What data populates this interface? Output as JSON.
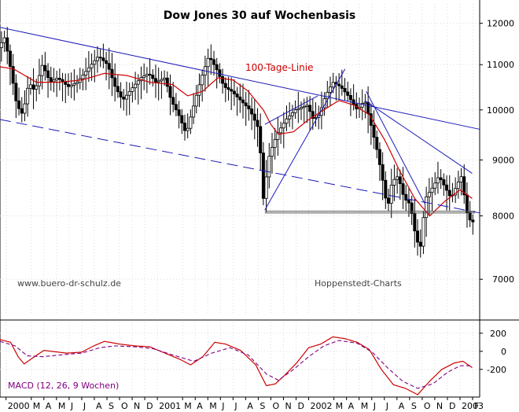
{
  "chart_data": {
    "type": "candlestick",
    "title": "Dow Jones 30 auf Wochenbasis",
    "watermark": "www.buero-dr-schulz.de",
    "source": "Hoppenstedt-Charts",
    "ma_label": "100-Tage-Linie",
    "macd_label": "MACD (12, 26, 9 Wochen)",
    "log_scale": true,
    "price_ylim": [
      6500,
      12500
    ],
    "price_ticks": [
      {
        "value": 7000,
        "label": "7000"
      },
      {
        "value": 8000,
        "label": "8000"
      },
      {
        "value": 9000,
        "label": "9000"
      },
      {
        "value": 10000,
        "label": "10000"
      },
      {
        "value": 11000,
        "label": "11000"
      },
      {
        "value": 12000,
        "label": "12000"
      }
    ],
    "macd_ylim": [
      -480,
      320
    ],
    "macd_ticks": [
      {
        "value": 200,
        "label": "200"
      },
      {
        "value": 0,
        "label": "0"
      },
      {
        "value": -200,
        "label": "-200"
      }
    ],
    "x_range": [
      1999.96,
      2003.13
    ],
    "x_ticks": [
      {
        "x": 2000.0,
        "label": "2000"
      },
      {
        "x": 2000.1667,
        "label": "M"
      },
      {
        "x": 2000.25,
        "label": "A"
      },
      {
        "x": 2000.3333,
        "label": "M"
      },
      {
        "x": 2000.4167,
        "label": "J"
      },
      {
        "x": 2000.5,
        "label": "J"
      },
      {
        "x": 2000.5833,
        "label": "A"
      },
      {
        "x": 2000.6667,
        "label": "S"
      },
      {
        "x": 2000.75,
        "label": "O"
      },
      {
        "x": 2000.8333,
        "label": "N"
      },
      {
        "x": 2000.9167,
        "label": "D"
      },
      {
        "x": 2001.0,
        "label": "2001"
      },
      {
        "x": 2001.1667,
        "label": "M"
      },
      {
        "x": 2001.25,
        "label": "A"
      },
      {
        "x": 2001.3333,
        "label": "M"
      },
      {
        "x": 2001.4167,
        "label": "J"
      },
      {
        "x": 2001.5,
        "label": "J"
      },
      {
        "x": 2001.5833,
        "label": "A"
      },
      {
        "x": 2001.6667,
        "label": "S"
      },
      {
        "x": 2001.75,
        "label": "O"
      },
      {
        "x": 2001.8333,
        "label": "N"
      },
      {
        "x": 2001.9167,
        "label": "D"
      },
      {
        "x": 2002.0,
        "label": "2002"
      },
      {
        "x": 2002.1667,
        "label": "M"
      },
      {
        "x": 2002.25,
        "label": "A"
      },
      {
        "x": 2002.3333,
        "label": "M"
      },
      {
        "x": 2002.4167,
        "label": "J"
      },
      {
        "x": 2002.5,
        "label": "J"
      },
      {
        "x": 2002.5833,
        "label": "A"
      },
      {
        "x": 2002.6667,
        "label": "S"
      },
      {
        "x": 2002.75,
        "label": "O"
      },
      {
        "x": 2002.8333,
        "label": "N"
      },
      {
        "x": 2002.9167,
        "label": "D"
      },
      {
        "x": 2003.0,
        "label": "2003"
      },
      {
        "x": 2003.0833,
        "label": "F"
      }
    ],
    "price_keypoints": [
      [
        1999.96,
        11400
      ],
      [
        2000.0,
        11650
      ],
      [
        2000.04,
        10900
      ],
      [
        2000.08,
        10100
      ],
      [
        2000.12,
        9900
      ],
      [
        2000.16,
        10600
      ],
      [
        2000.2,
        10400
      ],
      [
        2000.25,
        11000
      ],
      [
        2000.3,
        10600
      ],
      [
        2000.35,
        10700
      ],
      [
        2000.42,
        10500
      ],
      [
        2000.48,
        10600
      ],
      [
        2000.55,
        10900
      ],
      [
        2000.62,
        11200
      ],
      [
        2000.68,
        11000
      ],
      [
        2000.73,
        10500
      ],
      [
        2000.78,
        10200
      ],
      [
        2000.85,
        10500
      ],
      [
        2000.9,
        10700
      ],
      [
        2000.95,
        10800
      ],
      [
        2001.0,
        10600
      ],
      [
        2001.06,
        10700
      ],
      [
        2001.1,
        10200
      ],
      [
        2001.15,
        9900
      ],
      [
        2001.2,
        9500
      ],
      [
        2001.25,
        10100
      ],
      [
        2001.3,
        10700
      ],
      [
        2001.35,
        11200
      ],
      [
        2001.4,
        10900
      ],
      [
        2001.45,
        10500
      ],
      [
        2001.5,
        10400
      ],
      [
        2001.56,
        10200
      ],
      [
        2001.62,
        10000
      ],
      [
        2001.68,
        9600
      ],
      [
        2001.71,
        8300
      ],
      [
        2001.75,
        9100
      ],
      [
        2001.8,
        9500
      ],
      [
        2001.86,
        9800
      ],
      [
        2001.92,
        10000
      ],
      [
        2001.96,
        10050
      ],
      [
        2002.0,
        10100
      ],
      [
        2002.04,
        9800
      ],
      [
        2002.08,
        9900
      ],
      [
        2002.12,
        10300
      ],
      [
        2002.17,
        10600
      ],
      [
        2002.22,
        10500
      ],
      [
        2002.27,
        10300
      ],
      [
        2002.33,
        10000
      ],
      [
        2002.38,
        10200
      ],
      [
        2002.42,
        9700
      ],
      [
        2002.46,
        9200
      ],
      [
        2002.5,
        8600
      ],
      [
        2002.53,
        8100
      ],
      [
        2002.56,
        8600
      ],
      [
        2002.6,
        8700
      ],
      [
        2002.64,
        8300
      ],
      [
        2002.68,
        8200
      ],
      [
        2002.72,
        7600
      ],
      [
        2002.75,
        7500
      ],
      [
        2002.78,
        8300
      ],
      [
        2002.83,
        8500
      ],
      [
        2002.87,
        8700
      ],
      [
        2002.91,
        8500
      ],
      [
        2002.95,
        8300
      ],
      [
        2003.0,
        8600
      ],
      [
        2003.02,
        8700
      ],
      [
        2003.05,
        8100
      ],
      [
        2003.08,
        7900
      ]
    ],
    "ma_keypoints": [
      [
        1999.96,
        10950
      ],
      [
        2000.05,
        10900
      ],
      [
        2000.2,
        10600
      ],
      [
        2000.35,
        10600
      ],
      [
        2000.5,
        10650
      ],
      [
        2000.65,
        10800
      ],
      [
        2000.8,
        10750
      ],
      [
        2000.95,
        10600
      ],
      [
        2001.1,
        10550
      ],
      [
        2001.2,
        10300
      ],
      [
        2001.3,
        10400
      ],
      [
        2001.4,
        10700
      ],
      [
        2001.5,
        10650
      ],
      [
        2001.6,
        10400
      ],
      [
        2001.7,
        10000
      ],
      [
        2001.75,
        9700
      ],
      [
        2001.8,
        9500
      ],
      [
        2001.9,
        9550
      ],
      [
        2002.0,
        9800
      ],
      [
        2002.1,
        10000
      ],
      [
        2002.2,
        10200
      ],
      [
        2002.3,
        10100
      ],
      [
        2002.4,
        9900
      ],
      [
        2002.5,
        9400
      ],
      [
        2002.6,
        8800
      ],
      [
        2002.7,
        8300
      ],
      [
        2002.8,
        8000
      ],
      [
        2002.9,
        8250
      ],
      [
        2003.0,
        8450
      ],
      [
        2003.08,
        8300
      ]
    ],
    "macd_keypoints": [
      [
        1999.96,
        130
      ],
      [
        2000.03,
        100
      ],
      [
        2000.08,
        -60
      ],
      [
        2000.12,
        -140
      ],
      [
        2000.17,
        -80
      ],
      [
        2000.25,
        10
      ],
      [
        2000.4,
        -20
      ],
      [
        2000.5,
        -10
      ],
      [
        2000.58,
        60
      ],
      [
        2000.65,
        110
      ],
      [
        2000.75,
        80
      ],
      [
        2000.85,
        60
      ],
      [
        2000.95,
        50
      ],
      [
        2001.05,
        -20
      ],
      [
        2001.15,
        -90
      ],
      [
        2001.22,
        -150
      ],
      [
        2001.3,
        -60
      ],
      [
        2001.38,
        100
      ],
      [
        2001.45,
        80
      ],
      [
        2001.55,
        10
      ],
      [
        2001.65,
        -150
      ],
      [
        2001.72,
        -380
      ],
      [
        2001.78,
        -360
      ],
      [
        2001.85,
        -250
      ],
      [
        2001.92,
        -130
      ],
      [
        2002.0,
        40
      ],
      [
        2002.08,
        80
      ],
      [
        2002.16,
        160
      ],
      [
        2002.24,
        140
      ],
      [
        2002.32,
        100
      ],
      [
        2002.4,
        20
      ],
      [
        2002.48,
        -200
      ],
      [
        2002.56,
        -370
      ],
      [
        2002.64,
        -410
      ],
      [
        2002.72,
        -480
      ],
      [
        2002.8,
        -330
      ],
      [
        2002.88,
        -200
      ],
      [
        2002.96,
        -130
      ],
      [
        2003.02,
        -110
      ],
      [
        2003.08,
        -180
      ]
    ],
    "signal_keypoints": [
      [
        1999.96,
        110
      ],
      [
        2000.06,
        60
      ],
      [
        2000.14,
        -50
      ],
      [
        2000.24,
        -60
      ],
      [
        2000.36,
        -40
      ],
      [
        2000.5,
        -20
      ],
      [
        2000.62,
        40
      ],
      [
        2000.72,
        60
      ],
      [
        2000.85,
        50
      ],
      [
        2000.97,
        30
      ],
      [
        2001.1,
        -40
      ],
      [
        2001.24,
        -110
      ],
      [
        2001.36,
        -20
      ],
      [
        2001.48,
        40
      ],
      [
        2001.6,
        -40
      ],
      [
        2001.72,
        -250
      ],
      [
        2001.8,
        -320
      ],
      [
        2001.9,
        -200
      ],
      [
        2002.0,
        -60
      ],
      [
        2002.1,
        60
      ],
      [
        2002.2,
        120
      ],
      [
        2002.32,
        90
      ],
      [
        2002.42,
        -10
      ],
      [
        2002.52,
        -180
      ],
      [
        2002.62,
        -330
      ],
      [
        2002.72,
        -410
      ],
      [
        2002.82,
        -360
      ],
      [
        2002.92,
        -230
      ],
      [
        2003.0,
        -160
      ],
      [
        2003.08,
        -160
      ]
    ],
    "trendlines": [
      {
        "style": "solid",
        "from": [
          1999.96,
          11900
        ],
        "to": [
          2003.13,
          9600
        ]
      },
      {
        "style": "dashed",
        "from": [
          1999.96,
          9800
        ],
        "to": [
          2003.13,
          8050
        ]
      },
      {
        "style": "solid",
        "from": [
          2001.71,
          8100
        ],
        "to": [
          2002.24,
          10900
        ]
      },
      {
        "style": "solid",
        "from": [
          2001.71,
          9700
        ],
        "to": [
          2002.06,
          10300
        ]
      },
      {
        "style": "solid",
        "from": [
          2002.37,
          10200
        ],
        "to": [
          2003.08,
          8750
        ]
      },
      {
        "style": "solid",
        "from": [
          2002.38,
          10400
        ],
        "to": [
          2002.77,
          8200
        ]
      }
    ],
    "support_levels": [
      8050,
      8080
    ]
  }
}
